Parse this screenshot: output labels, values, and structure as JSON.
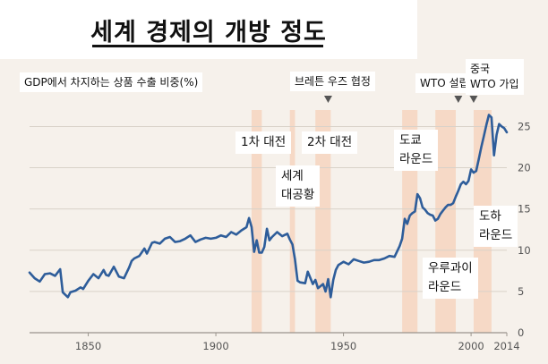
{
  "title": "세계 경제의 개방 정도",
  "chart_data": {
    "type": "line",
    "ylabel": "GDP에서 차지하는 상품 수출 비중(%)",
    "xlim": [
      1827,
      2014
    ],
    "ylim": [
      0,
      27
    ],
    "x_ticks": [
      1850,
      1900,
      1950,
      2000,
      2014
    ],
    "y_ticks": [
      0,
      5,
      10,
      15,
      20,
      25
    ],
    "line_color": "#2e5d9a",
    "band_color": "#f6d9c6",
    "bands": [
      {
        "x0": 1914,
        "x1": 1918
      },
      {
        "x0": 1929,
        "x1": 1931
      },
      {
        "x0": 1939,
        "x1": 1945
      },
      {
        "x0": 1973,
        "x1": 1979
      },
      {
        "x0": 1986,
        "x1": 1994
      },
      {
        "x0": 2001,
        "x1": 2008
      }
    ],
    "markers": [
      {
        "label": "브레튼 우즈 협정",
        "x": 1944
      },
      {
        "label": "WTO 설립",
        "x": 1995
      },
      {
        "label": "중국 WTO 가입",
        "x": 2001
      }
    ],
    "annotations": [
      {
        "lines": [
          "1차 대전"
        ]
      },
      {
        "lines": [
          "2차 대전"
        ]
      },
      {
        "lines": [
          "세계",
          "대공황"
        ]
      },
      {
        "lines": [
          "도쿄",
          "라운드"
        ]
      },
      {
        "lines": [
          "우루과이",
          "라운드"
        ]
      },
      {
        "lines": [
          "도하",
          "라운드"
        ]
      }
    ],
    "x": [
      1827,
      1829,
      1831,
      1833,
      1835,
      1837,
      1839,
      1840,
      1841,
      1842,
      1843,
      1845,
      1847,
      1848,
      1850,
      1852,
      1854,
      1856,
      1857,
      1858,
      1860,
      1862,
      1864,
      1866,
      1867,
      1868,
      1870,
      1872,
      1873,
      1875,
      1876,
      1878,
      1880,
      1882,
      1884,
      1886,
      1888,
      1890,
      1892,
      1894,
      1896,
      1898,
      1900,
      1902,
      1904,
      1906,
      1908,
      1910,
      1912,
      1913,
      1914,
      1915,
      1916,
      1917,
      1918,
      1919,
      1920,
      1921,
      1922,
      1924,
      1926,
      1928,
      1929,
      1930,
      1931,
      1932,
      1933,
      1935,
      1936,
      1938,
      1939,
      1940,
      1942,
      1943,
      1944,
      1945,
      1946,
      1947,
      1948,
      1950,
      1952,
      1954,
      1956,
      1958,
      1960,
      1962,
      1964,
      1966,
      1968,
      1970,
      1972,
      1973,
      1974,
      1975,
      1976,
      1977,
      1978,
      1979,
      1980,
      1981,
      1982,
      1983,
      1984,
      1985,
      1986,
      1987,
      1988,
      1989,
      1990,
      1991,
      1992,
      1993,
      1994,
      1995,
      1996,
      1997,
      1998,
      1999,
      2000,
      2001,
      2002,
      2003,
      2004,
      2005,
      2006,
      2007,
      2008,
      2009,
      2010,
      2011,
      2012,
      2013,
      2014
    ],
    "y": [
      7.3,
      6.6,
      6.2,
      7.1,
      7.2,
      6.9,
      7.7,
      4.9,
      4.6,
      4.3,
      4.9,
      5.1,
      5.5,
      5.3,
      6.3,
      7.1,
      6.6,
      7.6,
      7.0,
      6.9,
      8.0,
      6.8,
      6.6,
      7.9,
      8.7,
      9.0,
      9.3,
      10.2,
      9.6,
      10.9,
      11.0,
      10.8,
      11.4,
      11.6,
      11.0,
      11.1,
      11.4,
      11.8,
      11.0,
      11.3,
      11.5,
      11.4,
      11.5,
      11.8,
      11.6,
      12.2,
      11.9,
      12.4,
      12.8,
      13.9,
      12.8,
      9.8,
      11.2,
      9.7,
      9.7,
      10.4,
      12.6,
      11.2,
      11.6,
      12.2,
      11.7,
      12.0,
      11.3,
      10.7,
      8.9,
      6.3,
      6.1,
      6.0,
      7.4,
      5.9,
      6.4,
      5.4,
      5.9,
      5.0,
      6.5,
      4.3,
      6.4,
      7.6,
      8.2,
      8.6,
      8.3,
      8.9,
      8.7,
      8.5,
      8.6,
      8.8,
      8.8,
      9.0,
      9.3,
      9.2,
      10.5,
      11.4,
      13.8,
      13.2,
      14.2,
      14.5,
      14.7,
      16.8,
      16.3,
      15.2,
      14.9,
      14.5,
      14.3,
      14.2,
      13.6,
      13.8,
      14.4,
      14.8,
      15.2,
      15.5,
      15.5,
      15.7,
      16.5,
      17.2,
      18.0,
      18.3,
      18.0,
      18.4,
      19.8,
      19.4,
      19.6,
      21.0,
      22.5,
      23.8,
      25.2,
      26.4,
      26.1,
      21.5,
      24.0,
      25.3,
      25.0,
      24.8,
      24.3
    ]
  }
}
